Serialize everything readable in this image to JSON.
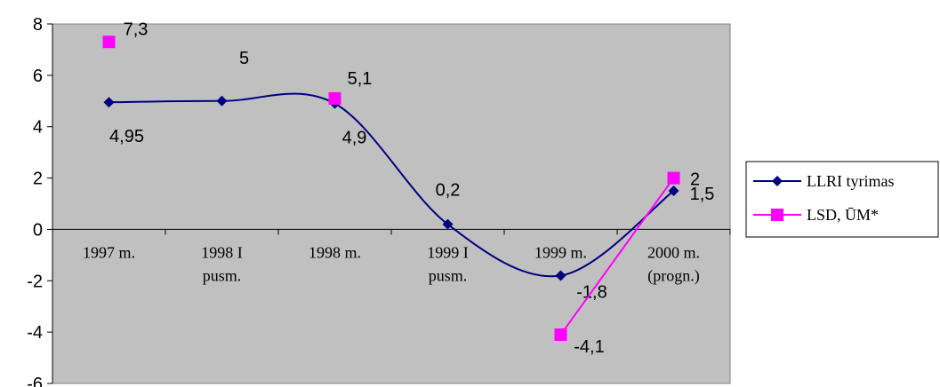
{
  "chart_data": {
    "type": "line",
    "categories": [
      [
        "1997 m."
      ],
      [
        "1998 I",
        "pusm."
      ],
      [
        "1998 m."
      ],
      [
        "1999 I",
        "pusm."
      ],
      [
        "1999 m."
      ],
      [
        "2000 m.",
        "(progn.)"
      ]
    ],
    "series": [
      {
        "name": "LLRI tyrimas",
        "color": "#000080",
        "marker": "diamond",
        "smooth": true,
        "values": [
          4.95,
          5,
          4.9,
          0.2,
          -1.8,
          1.5
        ],
        "labels": [
          "4,95",
          "5",
          "4,9",
          "0,2",
          "-1,8",
          "1,5"
        ]
      },
      {
        "name": "LSD, ŪM*",
        "color": "#ff00ff",
        "marker": "square",
        "smooth": false,
        "values": [
          7.3,
          null,
          5.1,
          null,
          -4.1,
          2
        ],
        "labels": [
          "7,3",
          null,
          "5,1",
          null,
          "-4,1",
          "2"
        ]
      }
    ],
    "yticks": [
      8,
      6,
      4,
      2,
      0,
      -2,
      -4,
      -6
    ],
    "ylim": [
      -6,
      8
    ],
    "plot_background": "#c0c0c0",
    "grid": false,
    "legend_position": "right"
  }
}
